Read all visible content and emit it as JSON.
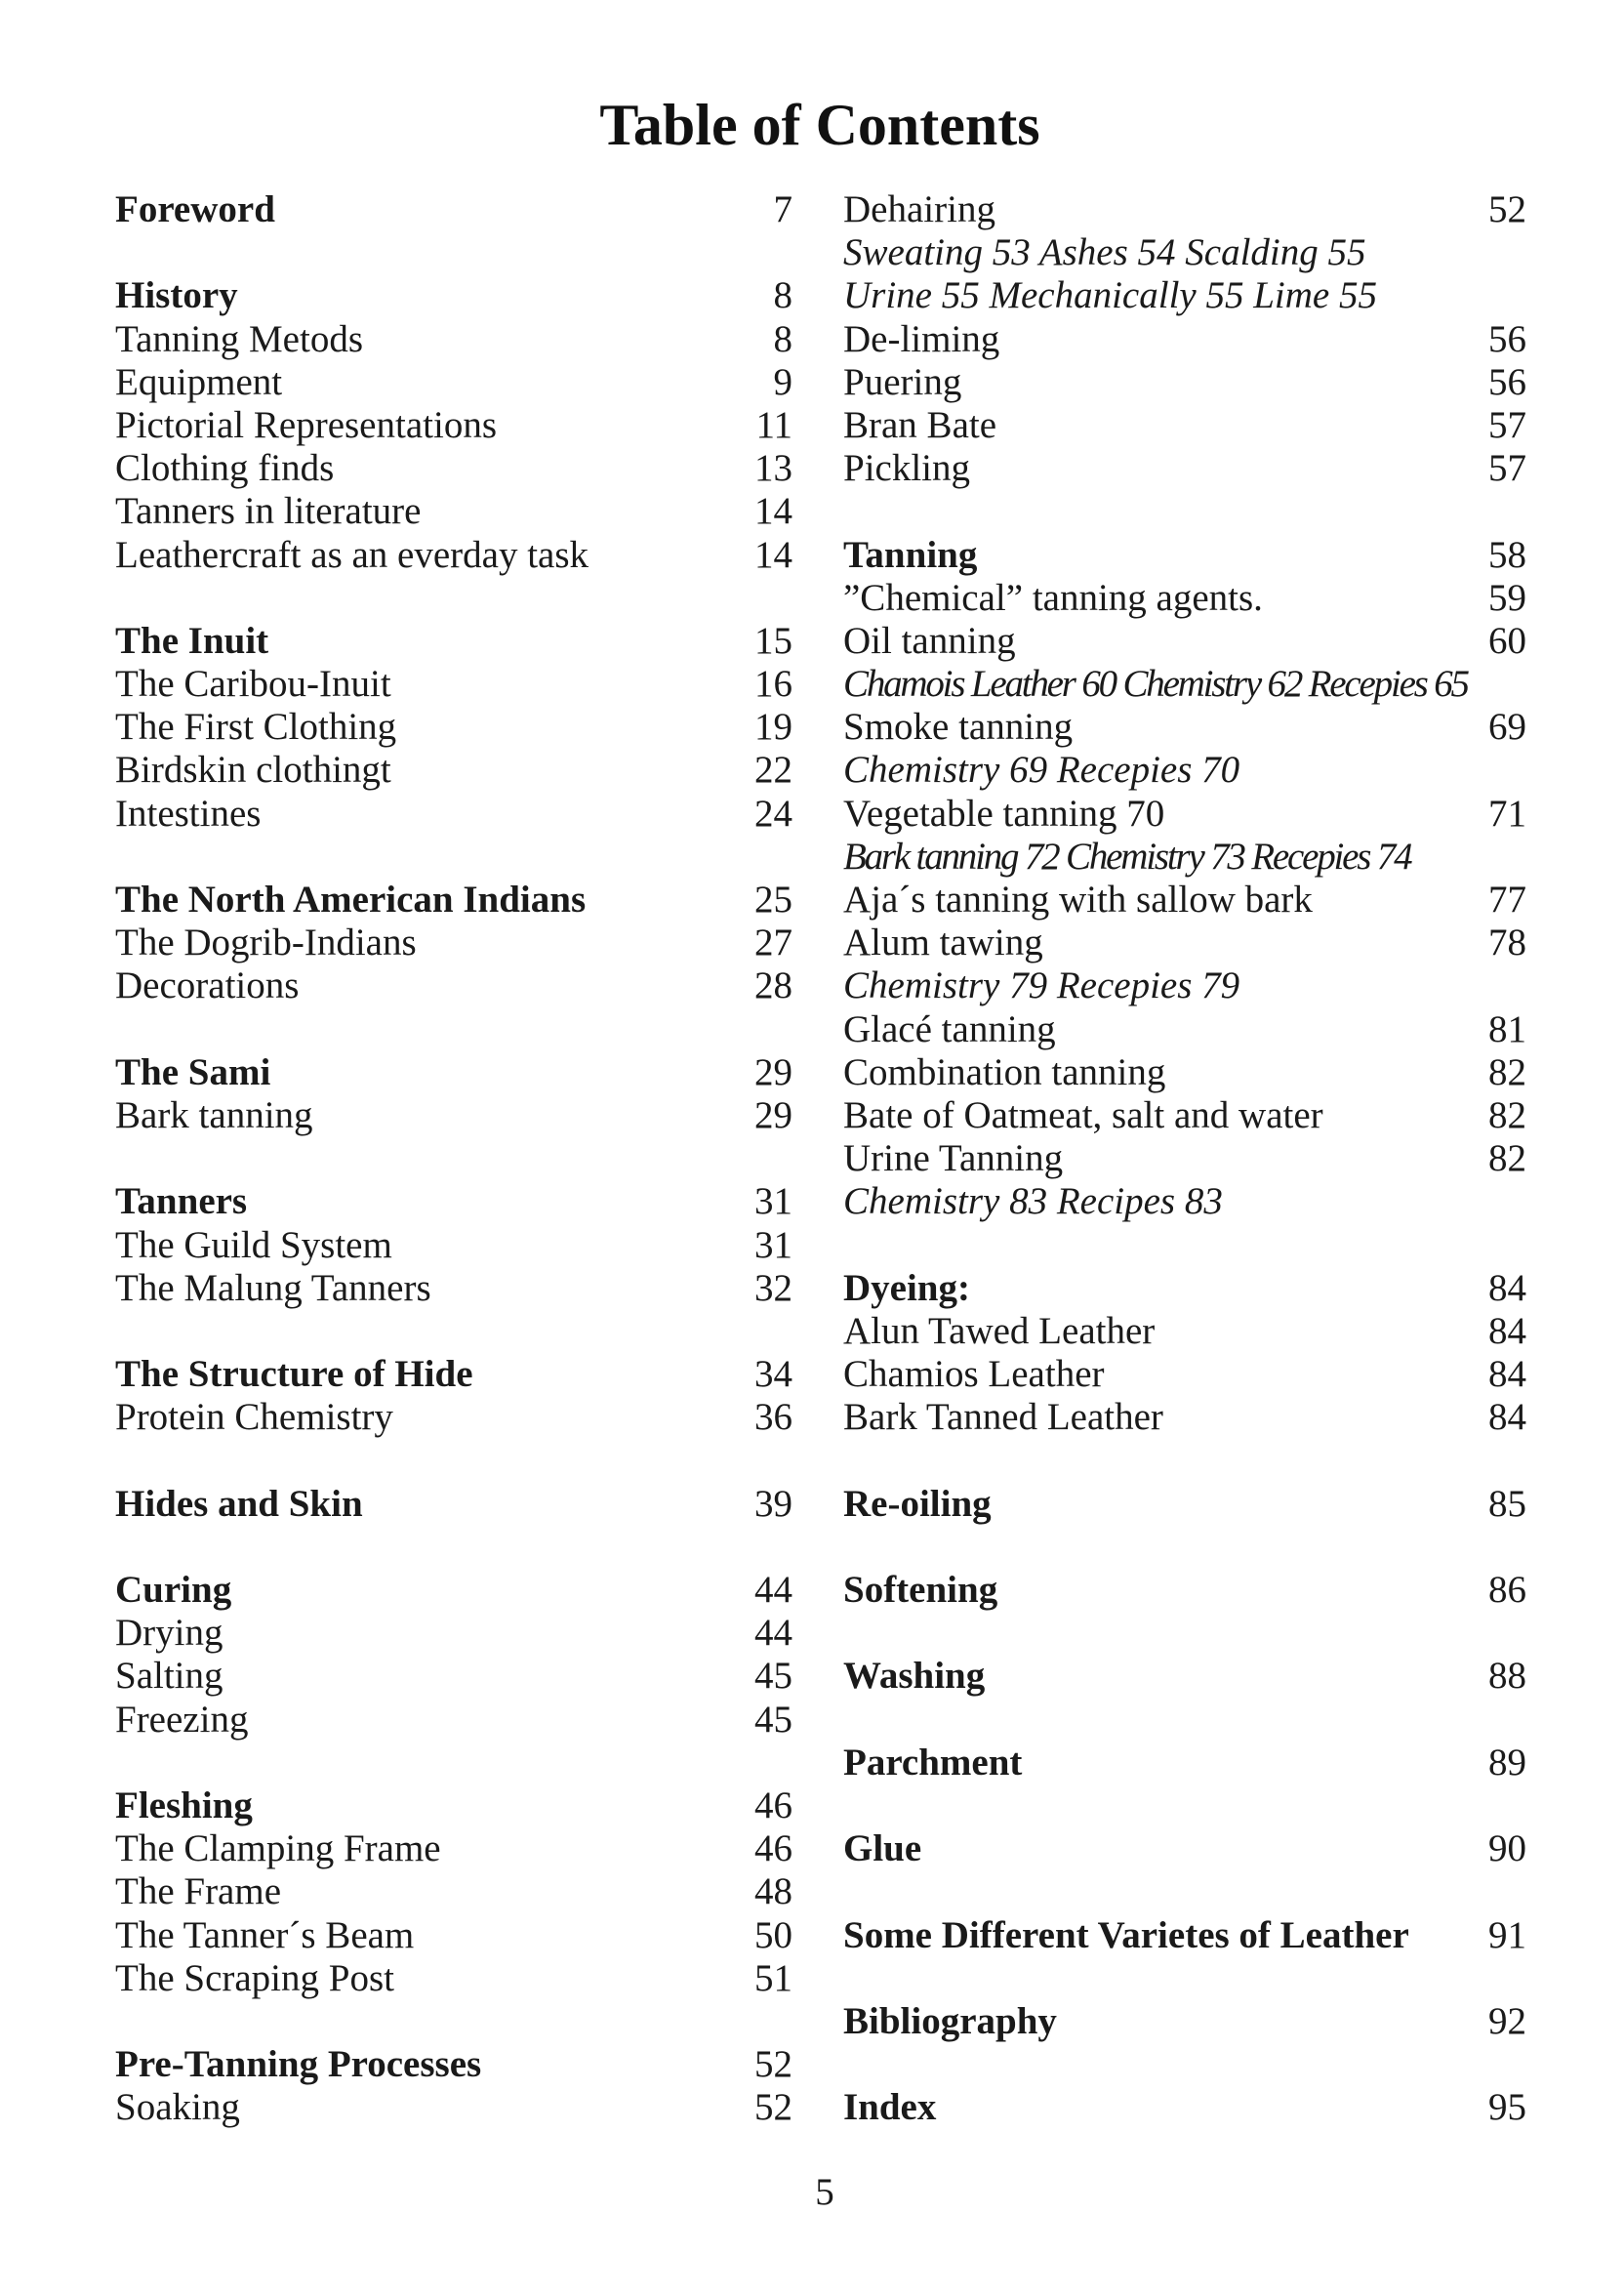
{
  "title": "Table of Contents",
  "page_number": "5",
  "columns": [
    {
      "groups": [
        {
          "entries": [
            {
              "text": "Foreword",
              "page": "7",
              "style": "bold"
            }
          ]
        },
        {
          "entries": [
            {
              "text": "History",
              "page": "8",
              "style": "bold"
            },
            {
              "text": "Tanning Metods",
              "page": "8",
              "style": "normal"
            },
            {
              "text": "Equipment",
              "page": "9",
              "style": "normal"
            },
            {
              "text": "Pictorial Representations",
              "page": "11",
              "style": "normal"
            },
            {
              "text": "Clothing finds",
              "page": "13",
              "style": "normal"
            },
            {
              "text": "Tanners in literature",
              "page": "14",
              "style": "normal"
            },
            {
              "text": "Leathercraft as an everday task",
              "page": "14",
              "style": "normal"
            }
          ]
        },
        {
          "entries": [
            {
              "text": "The Inuit",
              "page": "15",
              "style": "bold"
            },
            {
              "text": "The Caribou-Inuit",
              "page": "16",
              "style": "normal"
            },
            {
              "text": "The First Clothing",
              "page": "19",
              "style": "normal"
            },
            {
              "text": "Birdskin clothingt",
              "page": "22",
              "style": "normal"
            },
            {
              "text": "Intestines",
              "page": "24",
              "style": "normal"
            }
          ]
        },
        {
          "entries": [
            {
              "text": "The North American Indians",
              "page": "25",
              "style": "bold"
            },
            {
              "text": "The Dogrib-Indians",
              "page": "27",
              "style": "normal"
            },
            {
              "text": "Decorations",
              "page": "28",
              "style": "normal"
            }
          ]
        },
        {
          "entries": [
            {
              "text": "The Sami",
              "page": "29",
              "style": "bold"
            },
            {
              "text": "Bark tanning",
              "page": "29",
              "style": "normal"
            }
          ]
        },
        {
          "entries": [
            {
              "text": "Tanners",
              "page": "31",
              "style": "bold"
            },
            {
              "text": "The Guild System",
              "page": "31",
              "style": "normal"
            },
            {
              "text": "The Malung Tanners",
              "page": "32",
              "style": "normal"
            }
          ]
        },
        {
          "entries": [
            {
              "text": "The Structure of Hide",
              "page": "34",
              "style": "bold"
            },
            {
              "text": "Protein Chemistry",
              "page": "36",
              "style": "normal"
            }
          ]
        },
        {
          "entries": [
            {
              "text": "Hides and Skin",
              "page": "39",
              "style": "bold"
            }
          ]
        },
        {
          "entries": [
            {
              "text": "Curing",
              "page": "44",
              "style": "bold"
            },
            {
              "text": "Drying",
              "page": "44",
              "style": "normal"
            },
            {
              "text": "Salting",
              "page": "45",
              "style": "normal"
            },
            {
              "text": "Freezing",
              "page": "45",
              "style": "normal"
            }
          ]
        },
        {
          "entries": [
            {
              "text": "Fleshing",
              "page": "46",
              "style": "bold"
            },
            {
              "text": "The Clamping Frame",
              "page": "46",
              "style": "normal"
            },
            {
              "text": "The Frame",
              "page": "48",
              "style": "normal"
            },
            {
              "text": "The Tanner´s Beam",
              "page": "50",
              "style": "normal"
            },
            {
              "text": "The Scraping Post",
              "page": "51",
              "style": "normal"
            }
          ]
        },
        {
          "entries": [
            {
              "text": "Pre-Tanning Processes",
              "page": "52",
              "style": "bold"
            },
            {
              "text": "Soaking",
              "page": "52",
              "style": "normal"
            }
          ]
        }
      ]
    },
    {
      "groups": [
        {
          "entries": [
            {
              "text": "Dehairing",
              "page": "52",
              "style": "normal"
            },
            {
              "text": "Sweating 53 Ashes 54 Scalding 55",
              "page": "",
              "style": "italic"
            },
            {
              "text": "Urine 55 Mechanically 55 Lime 55",
              "page": "",
              "style": "italic"
            },
            {
              "text": "De-liming",
              "page": "56",
              "style": "normal"
            },
            {
              "text": "Puering",
              "page": "56",
              "style": "normal"
            },
            {
              "text": "Bran Bate",
              "page": "57",
              "style": "normal"
            },
            {
              "text": "Pickling",
              "page": "57",
              "style": "normal"
            }
          ]
        },
        {
          "entries": [
            {
              "text": "Tanning",
              "page": "58",
              "style": "bold"
            },
            {
              "text": "”Chemical” tanning agents.",
              "page": "59",
              "style": "normal"
            },
            {
              "text": "Oil tanning",
              "page": "60",
              "style": "normal"
            },
            {
              "text": "Chamois Leather 60 Chemistry 62 Recepies 65",
              "page": "",
              "style": "italic condensed"
            },
            {
              "text": "Smoke tanning",
              "page": "69",
              "style": "normal"
            },
            {
              "text": "Chemistry 69 Recepies 70",
              "page": "",
              "style": "italic"
            },
            {
              "text": "Vegetable tanning 70",
              "page": "71",
              "style": "normal"
            },
            {
              "text": "Bark tanning 72 Chemistry 73 Recepies 74",
              "page": "",
              "style": "italic condensed"
            },
            {
              "text": "Aja´s tanning with sallow bark",
              "page": "77",
              "style": "normal"
            },
            {
              "text": "Alum tawing",
              "page": "78",
              "style": "normal"
            },
            {
              "text": "Chemistry 79 Recepies 79",
              "page": "",
              "style": "italic"
            },
            {
              "text": "Glacé tanning",
              "page": "81",
              "style": "normal"
            },
            {
              "text": "Combination tanning",
              "page": "82",
              "style": "normal"
            },
            {
              "text": "Bate of Oatmeat, salt and water",
              "page": "82",
              "style": "normal"
            },
            {
              "text": "Urine Tanning",
              "page": "82",
              "style": "normal"
            },
            {
              "text": "Chemistry 83 Recipes 83",
              "page": "",
              "style": "italic"
            }
          ]
        },
        {
          "entries": [
            {
              "text": "Dyeing:",
              "page": "84",
              "style": "bold"
            },
            {
              "text": "Alun Tawed Leather",
              "page": "84",
              "style": "normal"
            },
            {
              "text": "Chamios Leather",
              "page": "84",
              "style": "normal"
            },
            {
              "text": "Bark Tanned Leather",
              "page": "84",
              "style": "normal"
            }
          ]
        },
        {
          "entries": [
            {
              "text": "Re-oiling",
              "page": "85",
              "style": "bold"
            }
          ]
        },
        {
          "entries": [
            {
              "text": "Softening",
              "page": "86",
              "style": "bold"
            }
          ]
        },
        {
          "entries": [
            {
              "text": "Washing",
              "page": "88",
              "style": "bold"
            }
          ]
        },
        {
          "entries": [
            {
              "text": "Parchment",
              "page": "89",
              "style": "bold"
            }
          ]
        },
        {
          "entries": [
            {
              "text": "Glue",
              "page": "90",
              "style": "bold"
            }
          ]
        },
        {
          "entries": [
            {
              "text": "Some Different Varietes of Leather",
              "page": "91",
              "style": "bold"
            }
          ]
        },
        {
          "entries": [
            {
              "text": "Bibliography",
              "page": "92",
              "style": "bold"
            }
          ]
        },
        {
          "entries": [
            {
              "text": "Index",
              "page": "95",
              "style": "bold"
            }
          ]
        }
      ]
    }
  ]
}
